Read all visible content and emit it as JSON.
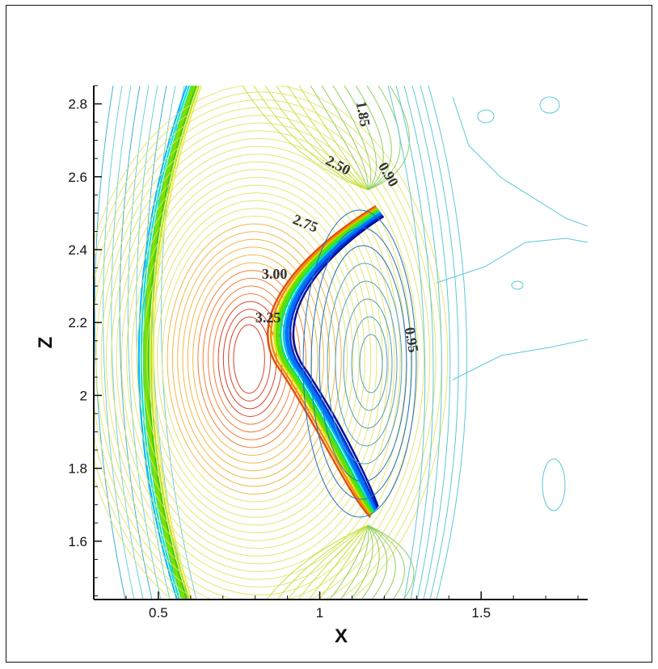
{
  "chart_data": {
    "type": "contour",
    "xlabel": "X",
    "ylabel": "Z",
    "xlim": [
      0.3,
      1.83
    ],
    "ylim": [
      1.44,
      2.85
    ],
    "x_ticks": [
      {
        "value": 0.5,
        "label": "0.5"
      },
      {
        "value": 1.0,
        "label": "1"
      },
      {
        "value": 1.5,
        "label": "1.5"
      }
    ],
    "y_ticks": [
      {
        "value": 1.6,
        "label": "1.6"
      },
      {
        "value": 1.8,
        "label": "1.8"
      },
      {
        "value": 2.0,
        "label": "2"
      },
      {
        "value": 2.2,
        "label": "2.2"
      },
      {
        "value": 2.4,
        "label": "2.4"
      },
      {
        "value": 2.6,
        "label": "2.6"
      },
      {
        "value": 2.8,
        "label": "2.8"
      }
    ],
    "contour_labels": [
      {
        "text": "1.85",
        "x": 1.12,
        "z": 2.77,
        "rotate": 80
      },
      {
        "text": "2.50",
        "x": 1.05,
        "z": 2.62,
        "rotate": 28
      },
      {
        "text": "0.90",
        "x": 1.2,
        "z": 2.6,
        "rotate": 60
      },
      {
        "text": "2.75",
        "x": 0.95,
        "z": 2.46,
        "rotate": 22
      },
      {
        "text": "3.00",
        "x": 0.86,
        "z": 2.32,
        "rotate": 0
      },
      {
        "text": "3.25",
        "x": 0.84,
        "z": 2.2,
        "rotate": 0
      },
      {
        "text": "0.95",
        "x": 1.27,
        "z": 2.15,
        "rotate": 80
      }
    ],
    "colormap": [
      "#0000cc",
      "#0080ff",
      "#00d0ff",
      "#00ffc0",
      "#40ff40",
      "#d0ff00",
      "#ffd000",
      "#ff6000",
      "#cc0000"
    ],
    "grid": false
  }
}
